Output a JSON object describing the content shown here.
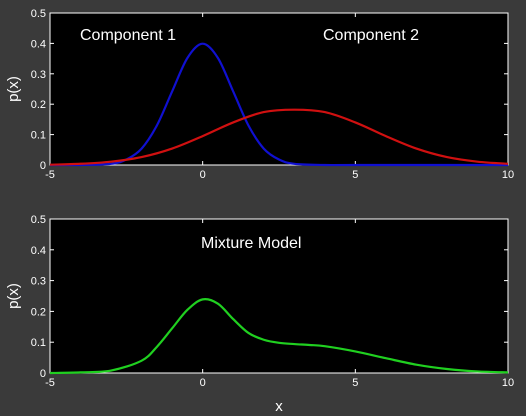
{
  "chart_data": [
    {
      "type": "line",
      "xlabel": "",
      "ylabel": "p(x)",
      "xlim": [
        -5,
        10
      ],
      "ylim": [
        0,
        0.5
      ],
      "xticks": [
        "-5",
        "0",
        "5",
        "10"
      ],
      "yticks": [
        "0",
        "0.1",
        "0.2",
        "0.3",
        "0.4",
        "0.5"
      ],
      "grid": false,
      "background": "#000000",
      "annotations": [
        "Component 1",
        "Component 2"
      ],
      "series": [
        {
          "color": "#1010d0",
          "x": [
            -5,
            -4,
            -3,
            -2.5,
            -2,
            -1.5,
            -1,
            -0.5,
            0,
            0.5,
            1,
            1.5,
            2,
            2.5,
            3,
            4,
            5,
            10
          ],
          "y": [
            0.0,
            0.0,
            0.004,
            0.018,
            0.054,
            0.13,
            0.242,
            0.352,
            0.399,
            0.352,
            0.242,
            0.13,
            0.054,
            0.018,
            0.004,
            0.0,
            0.0,
            0.0
          ]
        },
        {
          "color": "#d01010",
          "x": [
            -5,
            -4,
            -3,
            -2,
            -1,
            0,
            1,
            2,
            3,
            4,
            5,
            6,
            7,
            8,
            9,
            10
          ],
          "y": [
            0.001,
            0.004,
            0.011,
            0.026,
            0.054,
            0.095,
            0.14,
            0.174,
            0.182,
            0.174,
            0.14,
            0.095,
            0.054,
            0.026,
            0.011,
            0.004
          ]
        }
      ]
    },
    {
      "type": "line",
      "xlabel": "x",
      "ylabel": "p(x)",
      "xlim": [
        -5,
        10
      ],
      "ylim": [
        0,
        0.5
      ],
      "xticks": [
        "-5",
        "0",
        "5",
        "10"
      ],
      "yticks": [
        "0",
        "0.1",
        "0.2",
        "0.3",
        "0.4",
        "0.5"
      ],
      "grid": false,
      "background": "#000000",
      "annotations": [
        "Mixture Model"
      ],
      "series": [
        {
          "color": "#20d020",
          "x": [
            -5,
            -4,
            -3,
            -2,
            -1.5,
            -1,
            -0.5,
            0,
            0.5,
            1,
            1.5,
            2,
            2.5,
            3,
            3.5,
            4,
            5,
            6,
            7,
            8,
            9,
            10
          ],
          "y": [
            0.0,
            0.002,
            0.008,
            0.04,
            0.085,
            0.145,
            0.205,
            0.239,
            0.225,
            0.175,
            0.13,
            0.108,
            0.098,
            0.094,
            0.091,
            0.087,
            0.07,
            0.048,
            0.027,
            0.013,
            0.005,
            0.002
          ]
        }
      ]
    }
  ]
}
